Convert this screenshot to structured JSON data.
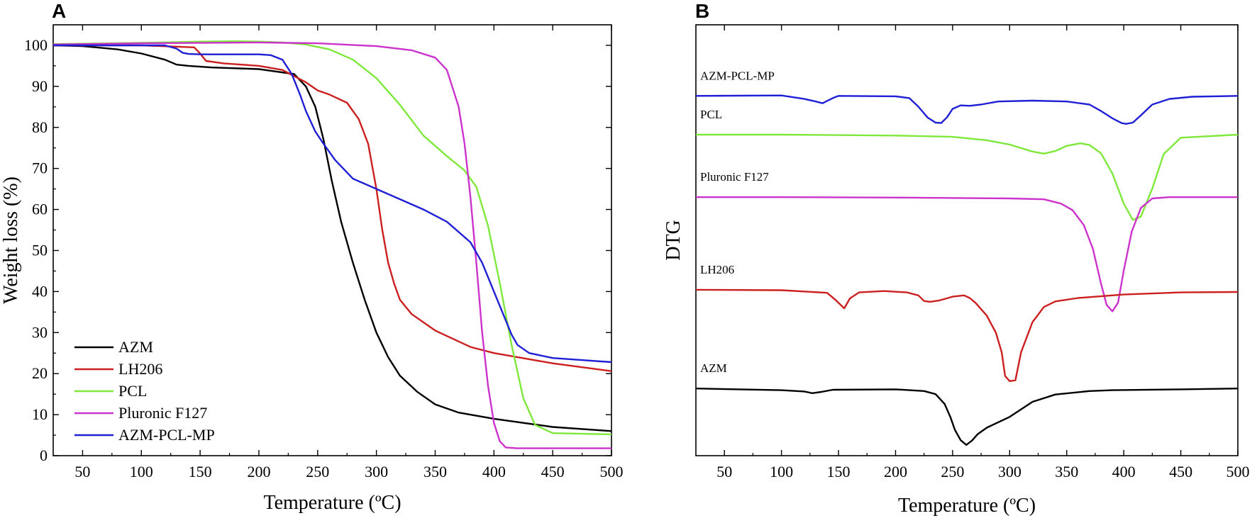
{
  "chart_data": [
    {
      "panel": "A",
      "type": "line",
      "xlabel": "Temperature (ºC)",
      "ylabel": "Weight loss (%)",
      "xlim": [
        25,
        500
      ],
      "ylim": [
        0,
        105
      ],
      "xticks": [
        "50",
        "100",
        "150",
        "200",
        "250",
        "300",
        "350",
        "400",
        "450",
        "500"
      ],
      "yticks": [
        "0",
        "10",
        "20",
        "30",
        "40",
        "50",
        "60",
        "70",
        "80",
        "90",
        "100"
      ],
      "legend_position": "bottom-left",
      "series": [
        {
          "name": "AZM",
          "color": "#000000",
          "x": [
            25,
            50,
            80,
            100,
            120,
            130,
            140,
            160,
            200,
            230,
            240,
            248,
            255,
            262,
            270,
            280,
            290,
            300,
            310,
            320,
            335,
            350,
            370,
            400,
            450,
            500
          ],
          "y": [
            100,
            99.8,
            99,
            98,
            96.5,
            95.3,
            95,
            94.6,
            94.2,
            93,
            90,
            85,
            77,
            67,
            57,
            47,
            38,
            30,
            24,
            19.5,
            15.5,
            12.5,
            10.5,
            9,
            7,
            6
          ]
        },
        {
          "name": "LH206",
          "color": "#cc1f1f",
          "x": [
            25,
            100,
            145,
            150,
            155,
            170,
            200,
            220,
            240,
            250,
            260,
            275,
            285,
            293,
            300,
            305,
            310,
            315,
            320,
            330,
            350,
            380,
            400,
            450,
            500
          ],
          "y": [
            100,
            100,
            99.5,
            98,
            96.2,
            95.6,
            95,
            94,
            91,
            89,
            88,
            86,
            82,
            76,
            65,
            55,
            47,
            42,
            38,
            34.5,
            30.5,
            26.5,
            25,
            22.5,
            20.6
          ]
        },
        {
          "name": "PCL",
          "color": "#7ee83b",
          "x": [
            25,
            100,
            150,
            180,
            200,
            220,
            240,
            260,
            280,
            300,
            320,
            340,
            360,
            375,
            385,
            395,
            405,
            415,
            425,
            435,
            450,
            500
          ],
          "y": [
            100.3,
            100.6,
            100.9,
            101,
            100.9,
            100.7,
            100.2,
            99,
            96.5,
            92,
            85.5,
            78,
            73,
            69.5,
            65.5,
            56,
            42,
            27,
            14,
            7.5,
            5.5,
            5.2
          ]
        },
        {
          "name": "Pluronic F127",
          "color": "#cc33cc",
          "x": [
            25,
            100,
            200,
            250,
            300,
            330,
            350,
            360,
            370,
            375,
            380,
            385,
            390,
            395,
            400,
            405,
            410,
            420,
            450,
            500
          ],
          "y": [
            100.2,
            100.5,
            100.7,
            100.5,
            99.8,
            98.8,
            97,
            94,
            85,
            76,
            63,
            47,
            30,
            17,
            8,
            3.5,
            2,
            1.8,
            1.8,
            1.8
          ]
        },
        {
          "name": "AZM-PCL-MP",
          "color": "#1f1fd6",
          "x": [
            25,
            120,
            130,
            135,
            140,
            150,
            170,
            200,
            210,
            220,
            228,
            235,
            240,
            248,
            255,
            265,
            280,
            300,
            320,
            340,
            360,
            380,
            390,
            400,
            410,
            415,
            420,
            430,
            450,
            500
          ],
          "y": [
            100,
            100,
            99.2,
            98.2,
            97.9,
            97.8,
            97.8,
            97.8,
            97.6,
            96.5,
            93,
            88,
            84,
            79,
            76,
            72,
            67.5,
            65,
            62.5,
            60,
            57,
            52,
            47,
            40,
            33,
            29.5,
            27,
            25,
            23.8,
            22.8
          ]
        }
      ]
    },
    {
      "panel": "B",
      "type": "line",
      "xlabel": "Temperature (ºC)",
      "ylabel": "DTG",
      "xlim": [
        25,
        500
      ],
      "ylim": [
        0,
        100
      ],
      "xticks": [
        "50",
        "100",
        "150",
        "200",
        "250",
        "300",
        "350",
        "400",
        "450",
        "500"
      ],
      "series": [
        {
          "name": "AZM-PCL-MP",
          "color": "#1f1fd6",
          "x": [
            25,
            100,
            120,
            130,
            136,
            145,
            150,
            200,
            212,
            220,
            228,
            235,
            240,
            245,
            250,
            257,
            265,
            275,
            290,
            320,
            350,
            370,
            380,
            390,
            398,
            402,
            408,
            415,
            425,
            440,
            460,
            500
          ],
          "y": [
            83.5,
            83.6,
            82.8,
            82.2,
            81.8,
            83,
            83.5,
            83.4,
            83,
            81,
            78.5,
            77.3,
            77.2,
            78.5,
            80.5,
            81.3,
            81.2,
            81.5,
            82.2,
            82.4,
            82.2,
            81.5,
            80,
            78.3,
            77.2,
            77,
            77.3,
            79,
            81.5,
            82.8,
            83.3,
            83.5
          ]
        },
        {
          "name": "PCL",
          "color": "#7ee83b",
          "x": [
            25,
            100,
            200,
            250,
            280,
            300,
            320,
            330,
            340,
            350,
            362,
            370,
            380,
            390,
            400,
            408,
            415,
            425,
            435,
            450,
            500
          ],
          "y": [
            74.5,
            74.5,
            74.3,
            74,
            73.2,
            72.2,
            70.6,
            70.1,
            70.7,
            71.9,
            72.5,
            72.1,
            70.2,
            65.5,
            58.5,
            54.7,
            55.5,
            62,
            70,
            73.8,
            74.5
          ]
        },
        {
          "name": "Pluronic F127",
          "color": "#cc33cc",
          "x": [
            25,
            100,
            200,
            300,
            330,
            345,
            355,
            365,
            373,
            380,
            385,
            390,
            395,
            400,
            407,
            415,
            425,
            440,
            500
          ],
          "y": [
            60,
            60,
            59.9,
            59.7,
            59.5,
            58.5,
            57,
            53.5,
            48,
            40,
            35,
            33.5,
            35.5,
            43,
            52,
            57.5,
            59.7,
            60,
            60
          ]
        },
        {
          "name": "LH206",
          "color": "#cc1f1f",
          "x": [
            25,
            100,
            140,
            148,
            155,
            160,
            168,
            190,
            210,
            220,
            225,
            230,
            238,
            250,
            260,
            265,
            270,
            280,
            288,
            293,
            296,
            300,
            305,
            310,
            320,
            330,
            340,
            360,
            400,
            450,
            500
          ],
          "y": [
            38.5,
            38.4,
            37.8,
            36,
            34.2,
            36.5,
            37.9,
            38.2,
            37.9,
            37.2,
            35.9,
            35.7,
            36,
            36.9,
            37.2,
            36.6,
            35.5,
            32.5,
            28.5,
            24,
            18.5,
            17.3,
            17.5,
            24,
            31,
            34.5,
            35.8,
            36.6,
            37.4,
            37.9,
            38
          ]
        },
        {
          "name": "AZM",
          "color": "#000000",
          "x": [
            25,
            100,
            120,
            127,
            135,
            145,
            200,
            225,
            235,
            243,
            248,
            252,
            257,
            262,
            267,
            272,
            280,
            300,
            320,
            340,
            370,
            390,
            450,
            500
          ],
          "y": [
            15.6,
            15.2,
            14.9,
            14.5,
            14.8,
            15.3,
            15.4,
            15,
            14.3,
            12,
            9,
            6,
            3.6,
            2.5,
            3.5,
            5,
            6.5,
            9,
            12.5,
            14.2,
            15,
            15.2,
            15.4,
            15.6
          ]
        }
      ]
    }
  ],
  "panels": {
    "a_letter": "A",
    "b_letter": "B"
  }
}
